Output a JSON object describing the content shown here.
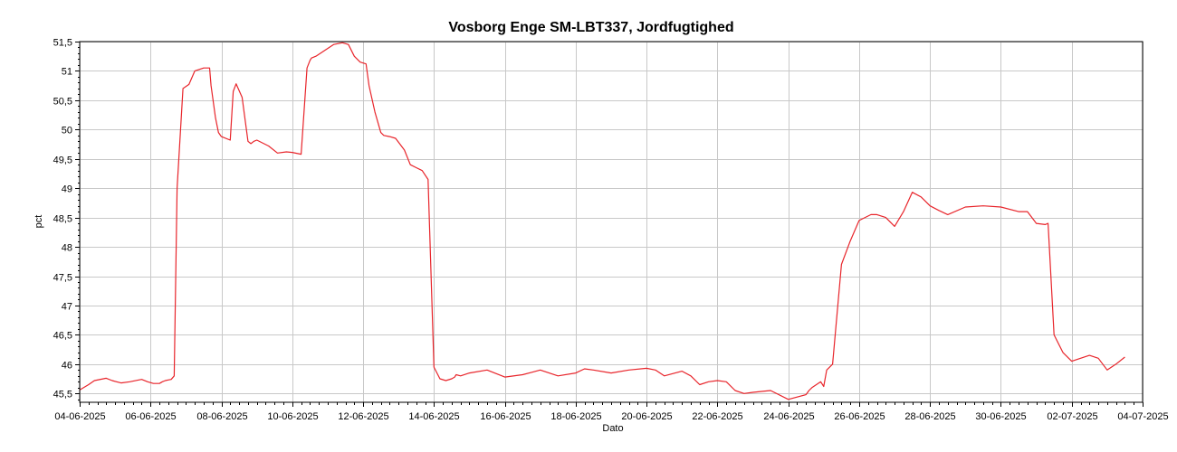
{
  "chart_data": {
    "type": "line",
    "title": "Vosborg Enge SM-LBT337, Jordfugtighed",
    "xlabel": "Dato",
    "ylabel": "pct",
    "ylim": [
      45.35,
      51.5
    ],
    "xlim": [
      "2025-06-04",
      "2025-07-04"
    ],
    "grid": true,
    "y_ticks": [
      "45,5",
      "46",
      "46,5",
      "47",
      "47,5",
      "48",
      "48,5",
      "49",
      "49,5",
      "50",
      "50,5",
      "51",
      "51,5"
    ],
    "x_ticks": [
      "04-06-2025",
      "06-06-2025",
      "08-06-2025",
      "10-06-2025",
      "12-06-2025",
      "14-06-2025",
      "16-06-2025",
      "18-06-2025",
      "20-06-2025",
      "22-06-2025",
      "24-06-2025",
      "26-06-2025",
      "28-06-2025",
      "30-06-2025",
      "02-07-2025",
      "04-07-2025"
    ],
    "colors": {
      "series": "#e8252b",
      "grid": "#c8c8c8",
      "axis": "#000000"
    },
    "series": [
      {
        "x": [
          "2025-06-04 00:00",
          "2025-06-04 06:00",
          "2025-06-04 10:00",
          "2025-06-04 18:00",
          "2025-06-04 22:00",
          "2025-06-05 04:00",
          "2025-06-05 10:00",
          "2025-06-05 16:00",
          "2025-06-05 18:00",
          "2025-06-05 22:00",
          "2025-06-06 02:00",
          "2025-06-06 06:00",
          "2025-06-06 08:00",
          "2025-06-06 10:00",
          "2025-06-06 12:00",
          "2025-06-06 14:00",
          "2025-06-06 16:00",
          "2025-06-06 18:00",
          "2025-06-06 22:00",
          "2025-06-07 02:00",
          "2025-06-07 06:00",
          "2025-06-07 12:00",
          "2025-06-07 16:00",
          "2025-06-07 17:00",
          "2025-06-07 20:00",
          "2025-06-07 22:00",
          "2025-06-08 00:00",
          "2025-06-08 06:00",
          "2025-06-08 08:00",
          "2025-06-08 10:00",
          "2025-06-08 14:00",
          "2025-06-08 18:00",
          "2025-06-08 20:00",
          "2025-06-08 22:00",
          "2025-06-09 00:00",
          "2025-06-09 08:00",
          "2025-06-09 14:00",
          "2025-06-09 20:00",
          "2025-06-10 00:00",
          "2025-06-10 06:00",
          "2025-06-10 10:00",
          "2025-06-10 12:00",
          "2025-06-10 13:00",
          "2025-06-10 16:00",
          "2025-06-10 22:00",
          "2025-06-11 04:00",
          "2025-06-11 10:00",
          "2025-06-11 14:00",
          "2025-06-11 18:00",
          "2025-06-11 22:00",
          "2025-06-12 02:00",
          "2025-06-12 04:00",
          "2025-06-12 08:00",
          "2025-06-12 12:00",
          "2025-06-12 14:00",
          "2025-06-12 18:00",
          "2025-06-12 22:00",
          "2025-06-13 04:00",
          "2025-06-13 08:00",
          "2025-06-13 12:00",
          "2025-06-13 16:00",
          "2025-06-13 20:00",
          "2025-06-14 00:00",
          "2025-06-14 04:00",
          "2025-06-14 08:00",
          "2025-06-14 12:00",
          "2025-06-14 14:00",
          "2025-06-14 15:00",
          "2025-06-14 18:00",
          "2025-06-15 00:00",
          "2025-06-15 12:00",
          "2025-06-16 00:00",
          "2025-06-16 12:00",
          "2025-06-16 18:00",
          "2025-06-17 00:00",
          "2025-06-17 12:00",
          "2025-06-18 00:00",
          "2025-06-18 06:00",
          "2025-06-18 12:00",
          "2025-06-19 00:00",
          "2025-06-19 12:00",
          "2025-06-20 00:00",
          "2025-06-20 06:00",
          "2025-06-20 12:00",
          "2025-06-21 00:00",
          "2025-06-21 06:00",
          "2025-06-21 12:00",
          "2025-06-21 18:00",
          "2025-06-22 00:00",
          "2025-06-22 06:00",
          "2025-06-22 12:00",
          "2025-06-22 18:00",
          "2025-06-23 00:00",
          "2025-06-23 12:00",
          "2025-06-24 00:00",
          "2025-06-24 12:00",
          "2025-06-24 14:00",
          "2025-06-24 16:00",
          "2025-06-24 22:00",
          "2025-06-25 00:00",
          "2025-06-25 02:00",
          "2025-06-25 06:00",
          "2025-06-25 12:00",
          "2025-06-25 18:00",
          "2025-06-26 00:00",
          "2025-06-26 08:00",
          "2025-06-26 12:00",
          "2025-06-26 18:00",
          "2025-06-27 00:00",
          "2025-06-27 06:00",
          "2025-06-27 12:00",
          "2025-06-27 18:00",
          "2025-06-28 00:00",
          "2025-06-28 06:00",
          "2025-06-28 12:00",
          "2025-06-29 00:00",
          "2025-06-29 12:00",
          "2025-06-30 00:00",
          "2025-06-30 12:00",
          "2025-06-30 18:00",
          "2025-07-01 00:00",
          "2025-07-01 06:00",
          "2025-07-01 08:00",
          "2025-07-01 12:00",
          "2025-07-01 18:00",
          "2025-07-02 00:00",
          "2025-07-02 06:00",
          "2025-07-02 12:00",
          "2025-07-02 18:00",
          "2025-07-03 00:00",
          "2025-07-03 06:00",
          "2025-07-03 12:00"
        ],
        "values": [
          45.56,
          45.65,
          45.72,
          45.76,
          45.72,
          45.68,
          45.7,
          45.73,
          45.74,
          45.7,
          45.67,
          45.67,
          45.7,
          45.72,
          45.73,
          45.74,
          45.8,
          49.0,
          50.7,
          50.77,
          51.0,
          51.05,
          51.05,
          50.75,
          50.2,
          49.95,
          49.88,
          49.82,
          50.65,
          50.78,
          50.55,
          49.8,
          49.76,
          49.8,
          49.82,
          49.72,
          49.6,
          49.62,
          49.61,
          49.58,
          51.05,
          51.18,
          51.22,
          51.25,
          51.35,
          51.45,
          51.48,
          51.45,
          51.25,
          51.15,
          51.12,
          50.75,
          50.3,
          49.95,
          49.9,
          49.88,
          49.85,
          49.65,
          49.4,
          49.35,
          49.3,
          49.15,
          45.95,
          45.75,
          45.72,
          45.75,
          45.78,
          45.82,
          45.8,
          45.85,
          45.9,
          45.78,
          45.82,
          45.86,
          45.9,
          45.8,
          45.85,
          45.92,
          45.9,
          45.85,
          45.9,
          45.93,
          45.9,
          45.8,
          45.88,
          45.8,
          45.65,
          45.7,
          45.72,
          45.7,
          45.55,
          45.5,
          45.52,
          45.55,
          45.4,
          45.48,
          45.55,
          45.6,
          45.7,
          45.62,
          45.9,
          46.0,
          47.7,
          48.1,
          48.45,
          48.55,
          48.55,
          48.5,
          48.35,
          48.6,
          48.93,
          48.85,
          48.7,
          48.62,
          48.55,
          48.68,
          48.7,
          48.68,
          48.6,
          48.6,
          48.4,
          48.38,
          48.4,
          46.5,
          46.2,
          46.05,
          46.1,
          46.15,
          46.1,
          45.9,
          46.0,
          46.12
        ]
      }
    ]
  }
}
